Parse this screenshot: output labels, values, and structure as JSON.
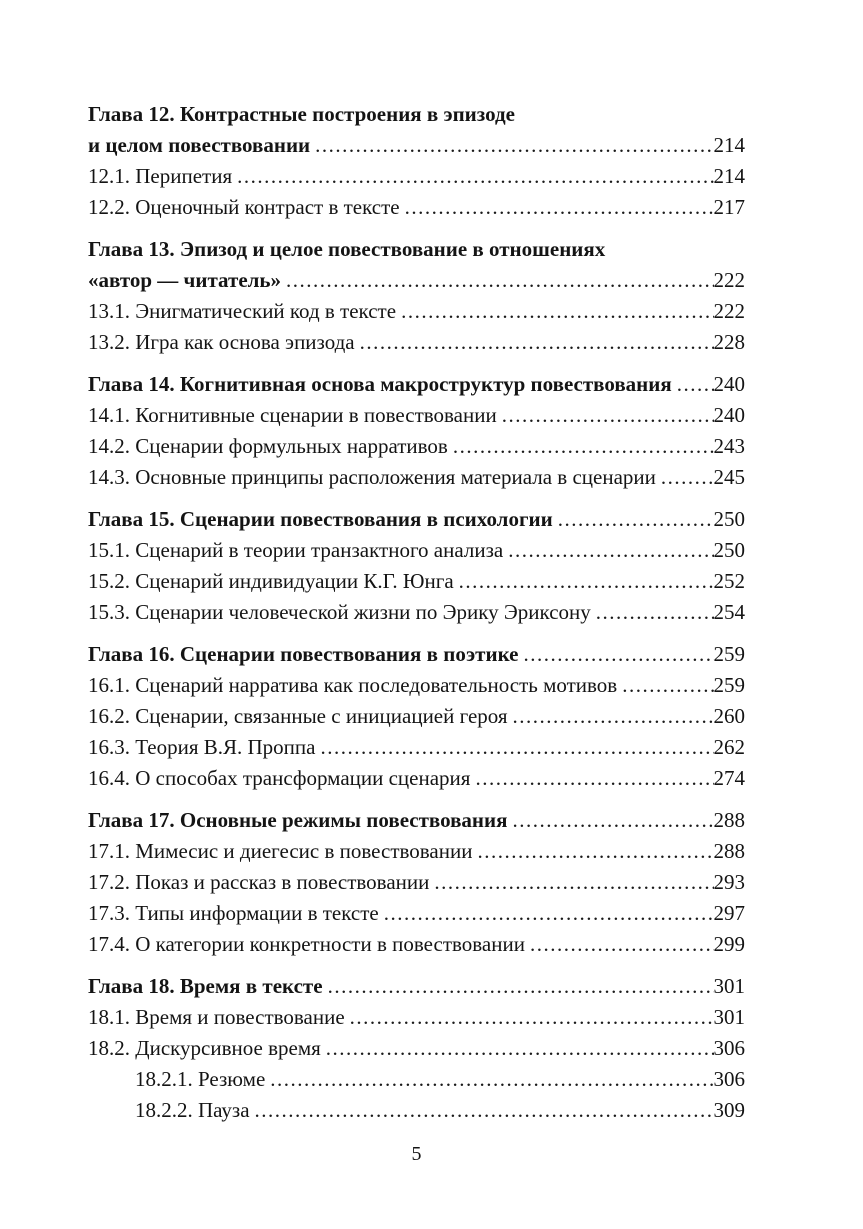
{
  "document": {
    "page_number": "5",
    "toc_entries": [
      {
        "kind": "chapter",
        "lines": [
          "Глава 12. Контрастные построения в эпизоде",
          "и целом повествовании"
        ],
        "page": "214"
      },
      {
        "kind": "section",
        "label": "12.1. Перипетия",
        "page": "214"
      },
      {
        "kind": "section",
        "label": "12.2. Оценочный контраст в тексте",
        "page": "217"
      },
      {
        "kind": "chapter",
        "lines": [
          "Глава 13. Эпизод и целое повествование в отношениях",
          "«автор — читатель»"
        ],
        "page": "222"
      },
      {
        "kind": "section",
        "label": "13.1. Энигматический код в тексте",
        "page": "222"
      },
      {
        "kind": "section",
        "label": "13.2. Игра как основа эпизода",
        "page": "228"
      },
      {
        "kind": "chapter",
        "lines": [
          "Глава 14. Когнитивная основа макроструктур повествования"
        ],
        "page": "240"
      },
      {
        "kind": "section",
        "label": "14.1. Когнитивные сценарии в повествовании",
        "page": "240"
      },
      {
        "kind": "section",
        "label": "14.2. Сценарии формульных нарративов",
        "page": "243"
      },
      {
        "kind": "section",
        "label": "14.3. Основные принципы расположения материала в сценарии",
        "page": "245"
      },
      {
        "kind": "chapter",
        "lines": [
          "Глава 15. Сценарии повествования в психологии"
        ],
        "page": "250"
      },
      {
        "kind": "section",
        "label": "15.1. Сценарий в теории транзактного анализа",
        "page": "250"
      },
      {
        "kind": "section",
        "label": "15.2. Сценарий индивидуации К.Г. Юнга",
        "page": "252"
      },
      {
        "kind": "section",
        "label": "15.3. Сценарии человеческой жизни по Эрику Эриксону",
        "page": "254"
      },
      {
        "kind": "chapter",
        "lines": [
          "Глава 16. Сценарии повествования в поэтике"
        ],
        "page": "259"
      },
      {
        "kind": "section",
        "label": "16.1. Сценарий нарратива как последовательность мотивов",
        "page": "259"
      },
      {
        "kind": "section",
        "label": "16.2. Сценарии, связанные с инициацией героя",
        "page": "260"
      },
      {
        "kind": "section",
        "label": "16.3. Теория В.Я. Проппа",
        "page": "262"
      },
      {
        "kind": "section",
        "label": "16.4. О способах трансформации сценария",
        "page": "274"
      },
      {
        "kind": "chapter",
        "lines": [
          "Глава 17. Основные режимы повествования"
        ],
        "page": "288"
      },
      {
        "kind": "section",
        "label": "17.1. Мимесис и диегесис в повествовании",
        "page": "288"
      },
      {
        "kind": "section",
        "label": "17.2. Показ и рассказ в повествовании",
        "page": "293"
      },
      {
        "kind": "section",
        "label": "17.3. Типы информации в тексте",
        "page": "297"
      },
      {
        "kind": "section",
        "label": "17.4. О категории конкретности в повествовании",
        "page": "299"
      },
      {
        "kind": "chapter",
        "lines": [
          "Глава 18. Время в тексте"
        ],
        "page": "301"
      },
      {
        "kind": "section",
        "label": "18.1. Время и повествование",
        "page": "301"
      },
      {
        "kind": "section",
        "label": "18.2. Дискурсивное время",
        "page": "306"
      },
      {
        "kind": "subsection",
        "label": "18.2.1. Резюме",
        "page": "306"
      },
      {
        "kind": "subsection",
        "label": "18.2.2. Пауза",
        "page": "309"
      }
    ]
  }
}
